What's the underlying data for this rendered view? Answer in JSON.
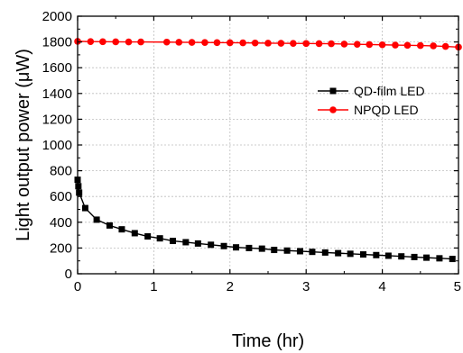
{
  "chart_data": {
    "type": "line",
    "xlabel": "Time (hr)",
    "ylabel": "Light output power (μW)",
    "xlim": [
      0,
      5
    ],
    "ylim": [
      0,
      2000
    ],
    "xticks": [
      "0",
      "1",
      "2",
      "3",
      "4",
      "5"
    ],
    "yticks": [
      "0",
      "200",
      "400",
      "600",
      "800",
      "1000",
      "1200",
      "1400",
      "1600",
      "1800",
      "2000"
    ],
    "grid": true,
    "legend_position": "right",
    "series": [
      {
        "name": "QD-film LED",
        "color": "#000000",
        "marker": "square",
        "x": [
          0,
          0.01,
          0.02,
          0.1,
          0.25,
          0.42,
          0.58,
          0.75,
          0.92,
          1.08,
          1.25,
          1.42,
          1.58,
          1.75,
          1.92,
          2.08,
          2.25,
          2.42,
          2.58,
          2.75,
          2.92,
          3.08,
          3.25,
          3.42,
          3.58,
          3.75,
          3.92,
          4.08,
          4.25,
          4.42,
          4.58,
          4.75,
          4.92
        ],
        "y": [
          730,
          680,
          630,
          510,
          420,
          375,
          345,
          315,
          290,
          275,
          255,
          245,
          235,
          225,
          215,
          205,
          200,
          195,
          185,
          180,
          175,
          170,
          165,
          160,
          155,
          150,
          145,
          140,
          135,
          130,
          125,
          120,
          115
        ]
      },
      {
        "name": "NPQD LED",
        "color": "#ff0000",
        "marker": "circle",
        "x": [
          0,
          0.17,
          0.33,
          0.5,
          0.67,
          0.83,
          1.17,
          1.33,
          1.5,
          1.67,
          1.83,
          2.0,
          2.17,
          2.33,
          2.5,
          2.67,
          2.83,
          3.0,
          3.17,
          3.33,
          3.5,
          3.67,
          3.83,
          4.0,
          4.17,
          4.33,
          4.5,
          4.67,
          4.83,
          5.0
        ],
        "y": [
          1805,
          1803,
          1802,
          1801,
          1800,
          1800,
          1799,
          1798,
          1797,
          1796,
          1795,
          1794,
          1793,
          1792,
          1791,
          1790,
          1789,
          1788,
          1787,
          1786,
          1784,
          1782,
          1780,
          1778,
          1776,
          1774,
          1772,
          1770,
          1765,
          1760
        ]
      }
    ]
  }
}
